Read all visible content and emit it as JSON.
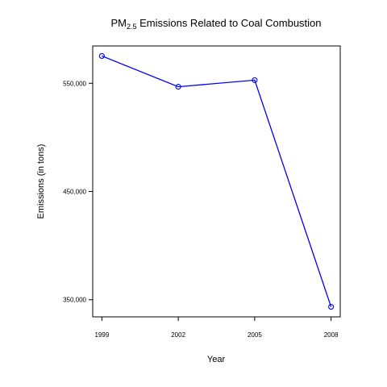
{
  "chart_data": {
    "type": "line",
    "title": {
      "prefix": "PM",
      "subscript": "2.5",
      "suffix": " Emissions Related to Coal Combustion"
    },
    "xlabel": "Year",
    "ylabel": "Emissions (in tons)",
    "x": [
      1999,
      2002,
      2005,
      2008
    ],
    "x_tick_labels": [
      "1999",
      "2002",
      "2005",
      "2008"
    ],
    "y_ticks": [
      350000,
      450000,
      550000
    ],
    "y_tick_labels": [
      "350,000",
      "450,000",
      "550,000"
    ],
    "series": [
      {
        "values": [
          575207,
          546789,
          552881,
          343432
        ],
        "color": "#0000ff",
        "marker": "open-circle"
      }
    ],
    "xlim": [
      1999,
      2008
    ],
    "ylim": [
      343432,
      575207
    ],
    "grid": false,
    "legend": "none"
  }
}
